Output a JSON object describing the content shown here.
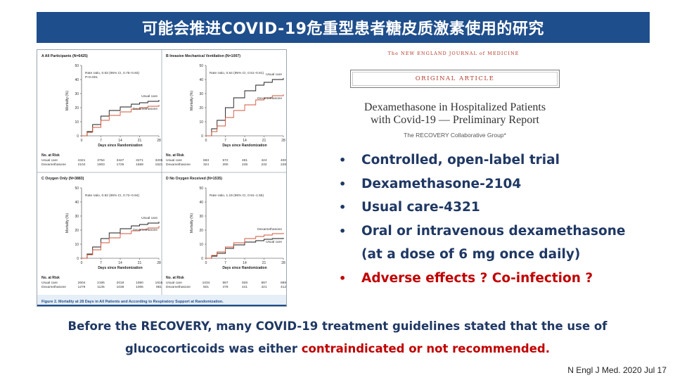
{
  "slide_title": "可能会推进COVID-19危重型患者糖皮质激素使用的研究",
  "figure": {
    "caption": "Figure 2. Mortality at 28 Days in All Patients and According to Respiratory Support at Randomization.",
    "no_at_risk_label": "No. at Risk",
    "xlabel": "Days since Randomization",
    "ylabel": "Mortality (%)",
    "x_ticks": [
      "0",
      "7",
      "14",
      "21",
      "28"
    ],
    "y_ticks": [
      "0",
      "10",
      "20",
      "30",
      "40",
      "50"
    ],
    "colors": {
      "usual_care": "#1a1a1a",
      "dexamethasone": "#d0553a",
      "caption_bar": "#1f4e8c"
    },
    "panels": [
      {
        "title": "A  All Participants (N=6425)",
        "stats": [
          "Rate ratio, 0.83 (95% CI, 0.75–0.93)",
          "P<0.001"
        ],
        "series_labels": [
          "Usual care",
          "Dexamethasone"
        ],
        "risk_rows": [
          {
            "label": "Usual care",
            "values": [
              "4321",
              "3754",
              "3427",
              "3271",
              "3205"
            ]
          },
          {
            "label": "Dexamethasone",
            "values": [
              "2104",
              "1903",
              "1725",
              "1659",
              "1621"
            ]
          }
        ]
      },
      {
        "title": "B  Invasive Mechanical Ventilation (N=1007)",
        "stats": [
          "Rate ratio, 0.64 (95% CI, 0.51–0.81)"
        ],
        "series_labels": [
          "Usual care",
          "Dexamethasone"
        ],
        "risk_rows": [
          {
            "label": "Usual care",
            "values": [
              "683",
              "572",
              "481",
              "424",
              "400"
            ]
          },
          {
            "label": "Dexamethasone",
            "values": [
              "324",
              "290",
              "248",
              "232",
              "228"
            ]
          }
        ]
      },
      {
        "title": "C  Oxygen Only (N=3883)",
        "stats": [
          "Rate ratio, 0.82 (95% CI, 0.72–0.94)"
        ],
        "series_labels": [
          "Usual care",
          "Dexamethasone"
        ],
        "risk_rows": [
          {
            "label": "Usual care",
            "values": [
              "2604",
              "2195",
              "2018",
              "1950",
              "1916"
            ]
          },
          {
            "label": "Dexamethasone",
            "values": [
              "1279",
              "1135",
              "1036",
              "1006",
              "981"
            ]
          }
        ]
      },
      {
        "title": "D  No Oxygen Received (N=1535)",
        "stats": [
          "Rate ratio, 1.19 (95% CI, 0.91–1.55)"
        ],
        "series_labels": [
          "Dexamethasone",
          "Usual care"
        ],
        "risk_rows": [
          {
            "label": "Usual care",
            "values": [
              "1034",
              "987",
              "928",
              "897",
              "889"
            ]
          },
          {
            "label": "Dexamethasone",
            "values": [
              "501",
              "478",
              "441",
              "421",
              "412"
            ]
          }
        ]
      }
    ]
  },
  "chart_data": [
    {
      "type": "line",
      "title": "A  All Participants (N=6425)",
      "xlabel": "Days since Randomization",
      "ylabel": "Mortality (%)",
      "xlim": [
        0,
        28
      ],
      "ylim": [
        0,
        50
      ],
      "x": [
        0,
        2,
        4,
        7,
        10,
        14,
        18,
        21,
        24,
        28
      ],
      "series": [
        {
          "name": "Usual care",
          "values": [
            0,
            3,
            8,
            14,
            18,
            20.5,
            22.5,
            23.5,
            24.5,
            25.5
          ]
        },
        {
          "name": "Dexamethasone",
          "values": [
            0,
            2.5,
            6,
            11,
            14.5,
            17,
            19,
            20,
            21,
            22
          ]
        }
      ]
    },
    {
      "type": "line",
      "title": "B  Invasive Mechanical Ventilation (N=1007)",
      "xlabel": "Days since Randomization",
      "ylabel": "Mortality (%)",
      "xlim": [
        0,
        28
      ],
      "ylim": [
        0,
        50
      ],
      "x": [
        0,
        2,
        4,
        7,
        10,
        14,
        18,
        21,
        24,
        28
      ],
      "series": [
        {
          "name": "Usual care",
          "values": [
            0,
            5,
            11,
            20,
            27,
            32,
            36,
            38,
            40,
            41
          ]
        },
        {
          "name": "Dexamethasone",
          "values": [
            0,
            3,
            7,
            13,
            18,
            22,
            25.5,
            27,
            28.5,
            29.5
          ]
        }
      ]
    },
    {
      "type": "line",
      "title": "C  Oxygen Only (N=3883)",
      "xlabel": "Days since Randomization",
      "ylabel": "Mortality (%)",
      "xlim": [
        0,
        28
      ],
      "ylim": [
        0,
        50
      ],
      "x": [
        0,
        2,
        4,
        7,
        10,
        14,
        18,
        21,
        24,
        28
      ],
      "series": [
        {
          "name": "Usual care",
          "values": [
            0,
            3,
            8,
            14,
            18,
            21,
            23,
            24,
            25,
            26
          ]
        },
        {
          "name": "Dexamethasone",
          "values": [
            0,
            2.5,
            6,
            11,
            14.5,
            17.5,
            19.5,
            20.5,
            21.5,
            23
          ]
        }
      ]
    },
    {
      "type": "line",
      "title": "D  No Oxygen Received (N=1535)",
      "xlabel": "Days since Randomization",
      "ylabel": "Mortality (%)",
      "xlim": [
        0,
        28
      ],
      "ylim": [
        0,
        50
      ],
      "x": [
        0,
        2,
        4,
        7,
        10,
        14,
        18,
        21,
        24,
        28
      ],
      "series": [
        {
          "name": "Usual care",
          "values": [
            0,
            1.5,
            3.5,
            7,
            9.5,
            11.5,
            12.5,
            13.5,
            14,
            14.5
          ]
        },
        {
          "name": "Dexamethasone",
          "values": [
            0,
            2,
            4.5,
            8,
            11,
            14,
            15.5,
            16.5,
            17.5,
            18
          ]
        }
      ]
    }
  ],
  "article": {
    "journal": "The NEW ENGLAND JOURNAL of MEDICINE",
    "type": "ORIGINAL ARTICLE",
    "title_line1": "Dexamethasone in Hospitalized Patients",
    "title_line2": "with Covid-19 — Preliminary Report",
    "authors": "The RECOVERY Collaborative Group*"
  },
  "bullets": [
    {
      "text": "Controlled, open-label trial",
      "highlight": false
    },
    {
      "text": "Dexamethasone-2104",
      "highlight": false
    },
    {
      "text": "Usual care-4321",
      "highlight": false
    },
    {
      "text": "Oral or intravenous dexamethasone",
      "highlight": false
    },
    {
      "text": "(at a dose of 6 mg once daily)",
      "highlight": false,
      "no_bullet": true
    },
    {
      "text": "Adverse effects ?   Co-infection ?",
      "highlight": true
    }
  ],
  "bullet_symbol": "•",
  "footer": {
    "line1": "Before the RECOVERY, many COVID-19 treatment guidelines stated that the use of",
    "line2_prefix": "glucocorticoids was either ",
    "line2_highlight": "contraindicated or not recommended."
  },
  "citation": "N Engl J Med. 2020 Jul 17"
}
